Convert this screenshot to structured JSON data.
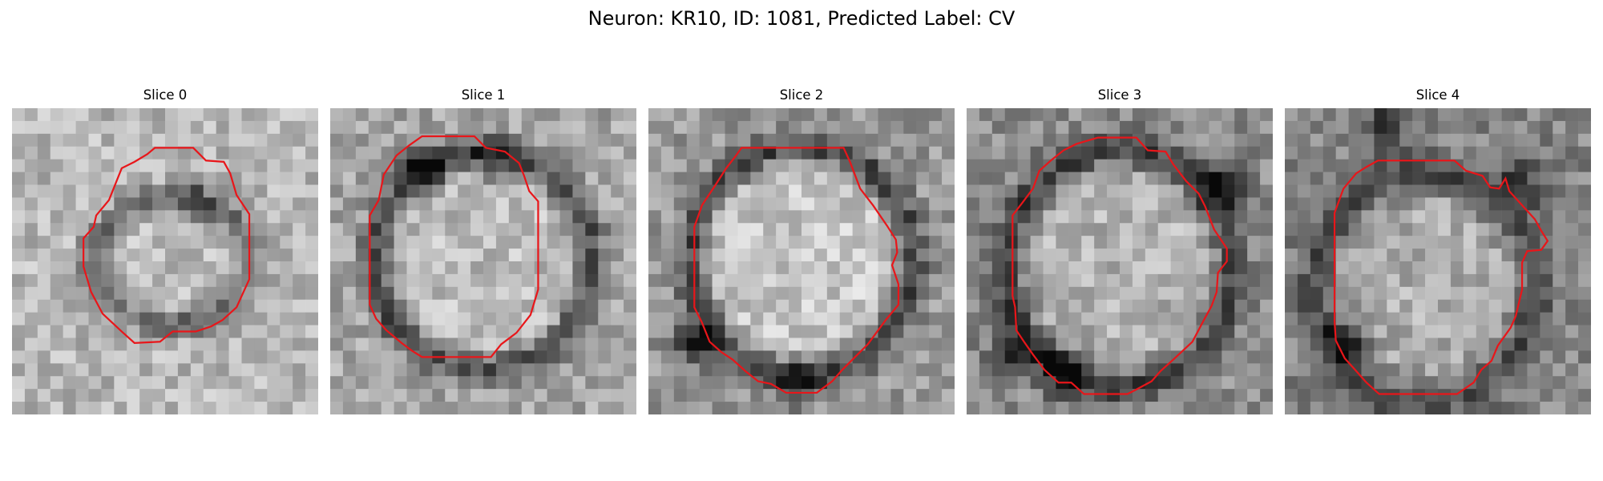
{
  "figure": {
    "title": "Neuron: KR10, ID: 1081, Predicted Label: CV"
  },
  "colors": {
    "background": "#ffffff",
    "contour": "#e8161a"
  },
  "panels": [
    {
      "title": "Slice 0",
      "cell": {
        "cx": 12.5,
        "cy": 12.0,
        "rx": 6.0,
        "ry": 5.0,
        "ring_width": 1.3,
        "ring_dark": 0.38,
        "interior": 0.74,
        "background": 0.72,
        "dark_spots": [
          [
            14.5,
            7.0,
            0.5
          ]
        ]
      },
      "contour": [
        [
          11.2,
          3.1
        ],
        [
          14.2,
          3.1
        ],
        [
          15.2,
          4.1
        ],
        [
          16.6,
          4.2
        ],
        [
          17.1,
          5.1
        ],
        [
          17.6,
          6.8
        ],
        [
          18.6,
          8.3
        ],
        [
          18.6,
          13.4
        ],
        [
          17.6,
          15.6
        ],
        [
          16.5,
          16.6
        ],
        [
          15.6,
          17.1
        ],
        [
          14.4,
          17.5
        ],
        [
          12.6,
          17.5
        ],
        [
          11.6,
          18.3
        ],
        [
          9.6,
          18.4
        ],
        [
          8.6,
          17.5
        ],
        [
          7.1,
          16.1
        ],
        [
          6.2,
          14.4
        ],
        [
          5.6,
          12.4
        ],
        [
          5.6,
          10.2
        ],
        [
          6.4,
          9.3
        ],
        [
          6.6,
          8.4
        ],
        [
          7.6,
          7.2
        ],
        [
          8.2,
          5.7
        ],
        [
          8.6,
          4.7
        ],
        [
          9.6,
          4.2
        ],
        [
          10.6,
          3.6
        ]
      ]
    },
    {
      "title": "Slice 1",
      "cell": {
        "cx": 12.0,
        "cy": 12.0,
        "rx": 8.5,
        "ry": 8.5,
        "ring_width": 1.7,
        "ring_dark": 0.3,
        "interior": 0.74,
        "background": 0.65,
        "dark_spots": [
          [
            7.5,
            4.5,
            0.9
          ],
          [
            13.0,
            4.2,
            0.6
          ]
        ]
      },
      "contour": [
        [
          7.2,
          2.2
        ],
        [
          11.3,
          2.2
        ],
        [
          12.2,
          3.1
        ],
        [
          13.7,
          3.4
        ],
        [
          14.8,
          4.3
        ],
        [
          15.2,
          5.3
        ],
        [
          15.6,
          6.5
        ],
        [
          16.3,
          7.3
        ],
        [
          16.3,
          14.2
        ],
        [
          15.7,
          16.2
        ],
        [
          14.6,
          17.6
        ],
        [
          13.4,
          18.5
        ],
        [
          12.6,
          19.5
        ],
        [
          7.2,
          19.5
        ],
        [
          6.4,
          19.0
        ],
        [
          5.6,
          18.4
        ],
        [
          4.4,
          17.4
        ],
        [
          3.6,
          16.5
        ],
        [
          3.1,
          15.4
        ],
        [
          3.1,
          8.4
        ],
        [
          3.8,
          7.2
        ],
        [
          4.2,
          5.2
        ],
        [
          5.2,
          3.7
        ],
        [
          6.2,
          2.9
        ]
      ]
    },
    {
      "title": "Slice 2",
      "cell": {
        "cx": 12.0,
        "cy": 12.0,
        "rx": 8.7,
        "ry": 9.0,
        "ring_width": 1.8,
        "ring_dark": 0.28,
        "interior": 0.78,
        "background": 0.6,
        "dark_spots": [
          [
            3.5,
            18.5,
            0.9
          ],
          [
            12.0,
            21.5,
            0.6
          ]
        ]
      },
      "contour": [
        [
          7.3,
          3.1
        ],
        [
          15.3,
          3.1
        ],
        [
          15.8,
          4.2
        ],
        [
          16.6,
          6.3
        ],
        [
          17.6,
          7.6
        ],
        [
          18.7,
          9.2
        ],
        [
          19.4,
          10.3
        ],
        [
          19.5,
          11.3
        ],
        [
          19.1,
          12.3
        ],
        [
          19.6,
          13.8
        ],
        [
          19.6,
          15.4
        ],
        [
          18.6,
          16.6
        ],
        [
          17.2,
          18.5
        ],
        [
          16.1,
          19.6
        ],
        [
          15.2,
          20.5
        ],
        [
          14.4,
          21.4
        ],
        [
          13.2,
          22.3
        ],
        [
          10.8,
          22.3
        ],
        [
          9.6,
          21.6
        ],
        [
          8.6,
          21.4
        ],
        [
          7.6,
          20.6
        ],
        [
          6.6,
          19.7
        ],
        [
          5.7,
          19.1
        ],
        [
          4.8,
          18.3
        ],
        [
          4.2,
          16.8
        ],
        [
          3.6,
          15.6
        ],
        [
          3.6,
          9.3
        ],
        [
          4.2,
          7.6
        ],
        [
          5.2,
          6.1
        ],
        [
          6.1,
          4.7
        ],
        [
          6.8,
          3.8
        ]
      ]
    },
    {
      "title": "Slice 3",
      "cell": {
        "cx": 12.0,
        "cy": 12.5,
        "rx": 8.8,
        "ry": 9.3,
        "ring_width": 1.9,
        "ring_dark": 0.25,
        "interior": 0.7,
        "background": 0.55,
        "dark_spots": [
          [
            7.5,
            20.5,
            1.0
          ],
          [
            20.0,
            6.0,
            0.9
          ],
          [
            3.5,
            19.0,
            0.7
          ]
        ]
      },
      "contour": [
        [
          10.3,
          2.3
        ],
        [
          13.3,
          2.3
        ],
        [
          14.2,
          3.3
        ],
        [
          15.6,
          3.4
        ],
        [
          16.2,
          4.4
        ],
        [
          17.2,
          5.7
        ],
        [
          18.2,
          6.7
        ],
        [
          18.7,
          7.7
        ],
        [
          19.4,
          9.5
        ],
        [
          20.4,
          11.0
        ],
        [
          20.4,
          12.0
        ],
        [
          19.7,
          12.9
        ],
        [
          19.6,
          14.4
        ],
        [
          19.2,
          15.5
        ],
        [
          18.6,
          16.6
        ],
        [
          17.7,
          18.3
        ],
        [
          16.2,
          19.7
        ],
        [
          15.2,
          20.6
        ],
        [
          14.5,
          21.4
        ],
        [
          13.2,
          22.1
        ],
        [
          12.6,
          22.4
        ],
        [
          9.2,
          22.4
        ],
        [
          8.2,
          21.5
        ],
        [
          7.2,
          21.5
        ],
        [
          6.1,
          20.5
        ],
        [
          5.2,
          19.3
        ],
        [
          4.5,
          18.3
        ],
        [
          3.9,
          17.4
        ],
        [
          3.8,
          15.6
        ],
        [
          3.6,
          14.7
        ],
        [
          3.6,
          8.4
        ],
        [
          4.3,
          7.5
        ],
        [
          5.2,
          6.3
        ],
        [
          5.7,
          4.9
        ],
        [
          6.6,
          4.1
        ],
        [
          7.6,
          3.3
        ],
        [
          8.6,
          2.8
        ]
      ]
    },
    {
      "title": "Slice 4",
      "cell": {
        "cx": 11.0,
        "cy": 14.0,
        "rx": 8.5,
        "ry": 9.0,
        "ring_width": 2.2,
        "ring_dark": 0.3,
        "interior": 0.68,
        "background": 0.52,
        "dark_spots": [
          [
            5.0,
            18.5,
            1.0
          ],
          [
            8.0,
            1.5,
            0.8
          ],
          [
            18.5,
            6.0,
            0.7
          ]
        ]
      },
      "contour": [
        [
          7.3,
          4.1
        ],
        [
          13.3,
          4.1
        ],
        [
          14.2,
          4.9
        ],
        [
          15.5,
          5.3
        ],
        [
          16.1,
          6.2
        ],
        [
          16.8,
          6.3
        ],
        [
          17.3,
          5.5
        ],
        [
          17.6,
          6.5
        ],
        [
          18.6,
          7.6
        ],
        [
          19.6,
          8.7
        ],
        [
          20.1,
          9.6
        ],
        [
          20.6,
          10.4
        ],
        [
          20.1,
          11.1
        ],
        [
          19.0,
          11.2
        ],
        [
          18.6,
          12.1
        ],
        [
          18.6,
          14.2
        ],
        [
          18.1,
          16.3
        ],
        [
          17.7,
          17.2
        ],
        [
          16.7,
          18.6
        ],
        [
          16.2,
          19.8
        ],
        [
          15.4,
          20.5
        ],
        [
          14.8,
          21.5
        ],
        [
          13.5,
          22.4
        ],
        [
          7.4,
          22.4
        ],
        [
          6.4,
          21.5
        ],
        [
          5.6,
          20.6
        ],
        [
          4.7,
          19.6
        ],
        [
          4.0,
          18.2
        ],
        [
          3.9,
          16.7
        ],
        [
          3.9,
          8.2
        ],
        [
          4.6,
          6.3
        ],
        [
          5.6,
          5.1
        ],
        [
          6.4,
          4.6
        ]
      ]
    }
  ]
}
